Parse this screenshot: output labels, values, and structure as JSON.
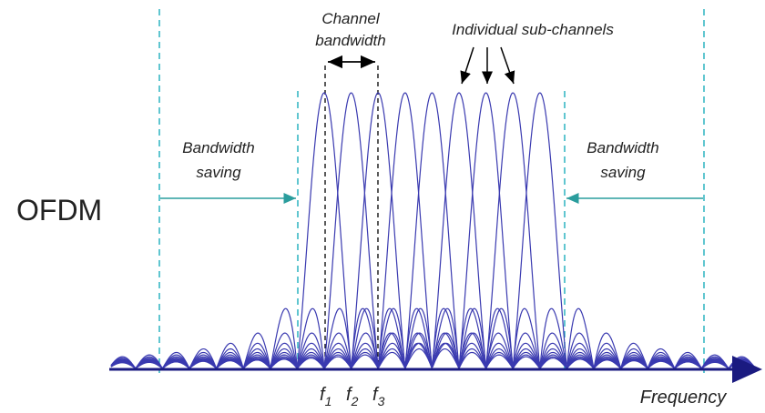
{
  "diagram": {
    "label": "OFDM",
    "channel_bandwidth": [
      "Channel",
      "bandwidth"
    ],
    "subchannels_label": "Individual sub-channels",
    "saving_left": [
      "Bandwidth",
      "saving"
    ],
    "saving_right": [
      "Bandwidth",
      "saving"
    ],
    "frequencies": [
      {
        "symbol": "f",
        "index": "1"
      },
      {
        "symbol": "f",
        "index": "2"
      },
      {
        "symbol": "f",
        "index": "3"
      }
    ],
    "axis_label": "Frequency"
  }
}
